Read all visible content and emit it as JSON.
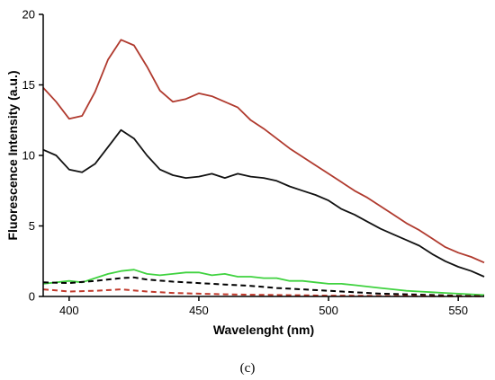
{
  "chart_data": {
    "type": "line",
    "panel_label": "(c)",
    "xlabel": "Wavelenght (nm)",
    "ylabel": "Fluorescence Intensity (a.u.)",
    "xlim": [
      390,
      560
    ],
    "ylim": [
      0,
      20
    ],
    "xticks": [
      400,
      450,
      500,
      550
    ],
    "yticks": [
      0,
      5,
      10,
      15,
      20
    ],
    "grid": false,
    "series": [
      {
        "color": "#b03a2e",
        "style": "solid",
        "points": [
          [
            390,
            14.8
          ],
          [
            395,
            13.8
          ],
          [
            400,
            12.6
          ],
          [
            405,
            12.8
          ],
          [
            410,
            14.5
          ],
          [
            415,
            16.8
          ],
          [
            420,
            18.2
          ],
          [
            425,
            17.8
          ],
          [
            430,
            16.3
          ],
          [
            435,
            14.6
          ],
          [
            440,
            13.8
          ],
          [
            445,
            14.0
          ],
          [
            450,
            14.4
          ],
          [
            455,
            14.2
          ],
          [
            460,
            13.8
          ],
          [
            465,
            13.4
          ],
          [
            470,
            12.5
          ],
          [
            475,
            11.9
          ],
          [
            480,
            11.2
          ],
          [
            485,
            10.5
          ],
          [
            490,
            9.9
          ],
          [
            495,
            9.3
          ],
          [
            500,
            8.7
          ],
          [
            505,
            8.1
          ],
          [
            510,
            7.5
          ],
          [
            515,
            7.0
          ],
          [
            520,
            6.4
          ],
          [
            525,
            5.8
          ],
          [
            530,
            5.2
          ],
          [
            535,
            4.7
          ],
          [
            540,
            4.1
          ],
          [
            545,
            3.5
          ],
          [
            550,
            3.1
          ],
          [
            555,
            2.8
          ],
          [
            560,
            2.4
          ]
        ]
      },
      {
        "color": "#111111",
        "style": "solid",
        "points": [
          [
            390,
            10.4
          ],
          [
            395,
            10.0
          ],
          [
            400,
            9.0
          ],
          [
            405,
            8.8
          ],
          [
            410,
            9.4
          ],
          [
            415,
            10.6
          ],
          [
            420,
            11.8
          ],
          [
            425,
            11.2
          ],
          [
            430,
            10.0
          ],
          [
            435,
            9.0
          ],
          [
            440,
            8.6
          ],
          [
            445,
            8.4
          ],
          [
            450,
            8.5
          ],
          [
            455,
            8.7
          ],
          [
            460,
            8.4
          ],
          [
            465,
            8.7
          ],
          [
            470,
            8.5
          ],
          [
            475,
            8.4
          ],
          [
            480,
            8.2
          ],
          [
            485,
            7.8
          ],
          [
            490,
            7.5
          ],
          [
            495,
            7.2
          ],
          [
            500,
            6.8
          ],
          [
            505,
            6.2
          ],
          [
            510,
            5.8
          ],
          [
            515,
            5.3
          ],
          [
            520,
            4.8
          ],
          [
            525,
            4.4
          ],
          [
            530,
            4.0
          ],
          [
            535,
            3.6
          ],
          [
            540,
            3.0
          ],
          [
            545,
            2.5
          ],
          [
            550,
            2.1
          ],
          [
            555,
            1.8
          ],
          [
            560,
            1.4
          ]
        ]
      },
      {
        "color": "#3fd23f",
        "style": "solid",
        "points": [
          [
            390,
            0.9
          ],
          [
            395,
            1.0
          ],
          [
            400,
            1.1
          ],
          [
            405,
            1.0
          ],
          [
            410,
            1.3
          ],
          [
            415,
            1.6
          ],
          [
            420,
            1.8
          ],
          [
            425,
            1.9
          ],
          [
            430,
            1.6
          ],
          [
            435,
            1.5
          ],
          [
            440,
            1.6
          ],
          [
            445,
            1.7
          ],
          [
            450,
            1.7
          ],
          [
            455,
            1.5
          ],
          [
            460,
            1.6
          ],
          [
            465,
            1.4
          ],
          [
            470,
            1.4
          ],
          [
            475,
            1.3
          ],
          [
            480,
            1.3
          ],
          [
            485,
            1.1
          ],
          [
            490,
            1.1
          ],
          [
            495,
            1.0
          ],
          [
            500,
            0.9
          ],
          [
            505,
            0.9
          ],
          [
            510,
            0.8
          ],
          [
            515,
            0.7
          ],
          [
            520,
            0.6
          ],
          [
            525,
            0.5
          ],
          [
            530,
            0.4
          ],
          [
            535,
            0.35
          ],
          [
            540,
            0.3
          ],
          [
            545,
            0.25
          ],
          [
            550,
            0.2
          ],
          [
            555,
            0.15
          ],
          [
            560,
            0.1
          ]
        ]
      },
      {
        "color": "#000000",
        "style": "dashed",
        "points": [
          [
            390,
            1.0
          ],
          [
            400,
            0.95
          ],
          [
            410,
            1.1
          ],
          [
            420,
            1.3
          ],
          [
            425,
            1.35
          ],
          [
            430,
            1.2
          ],
          [
            440,
            1.05
          ],
          [
            450,
            0.95
          ],
          [
            460,
            0.85
          ],
          [
            470,
            0.75
          ],
          [
            480,
            0.6
          ],
          [
            490,
            0.5
          ],
          [
            500,
            0.4
          ],
          [
            510,
            0.3
          ],
          [
            520,
            0.2
          ],
          [
            530,
            0.15
          ],
          [
            540,
            0.1
          ],
          [
            550,
            0.05
          ],
          [
            560,
            0.03
          ]
        ]
      },
      {
        "color": "#c0392b",
        "style": "dashed",
        "points": [
          [
            390,
            0.5
          ],
          [
            400,
            0.35
          ],
          [
            410,
            0.4
          ],
          [
            420,
            0.5
          ],
          [
            430,
            0.35
          ],
          [
            440,
            0.25
          ],
          [
            450,
            0.2
          ],
          [
            460,
            0.15
          ],
          [
            470,
            0.12
          ],
          [
            480,
            0.1
          ],
          [
            490,
            0.08
          ],
          [
            500,
            0.06
          ],
          [
            510,
            0.05
          ],
          [
            520,
            0.04
          ],
          [
            530,
            0.03
          ],
          [
            540,
            0.02
          ],
          [
            550,
            0.02
          ],
          [
            560,
            0.01
          ]
        ]
      }
    ]
  }
}
